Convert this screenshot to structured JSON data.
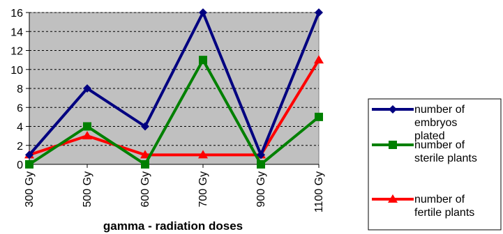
{
  "chart_data": {
    "type": "line",
    "categories": [
      "300 Gy",
      "500 Gy",
      "600 Gy",
      "700 Gy",
      "900 Gy",
      "1100 Gy"
    ],
    "series": [
      {
        "name": "number of embryos plated",
        "values": [
          1,
          8,
          4,
          16,
          1,
          16
        ],
        "color": "#000080",
        "marker": "diamond"
      },
      {
        "name": "number of sterile plants",
        "values": [
          0,
          4,
          0,
          11,
          0,
          5
        ],
        "color": "#008000",
        "marker": "square"
      },
      {
        "name": "number of fertile plants",
        "values": [
          1,
          3,
          1,
          1,
          1,
          11
        ],
        "color": "#ff0000",
        "marker": "triangle"
      }
    ],
    "xlabel": "gamma - radiation doses",
    "ylabel": "",
    "ylim": [
      0,
      16
    ],
    "yticks": [
      0,
      2,
      4,
      6,
      8,
      10,
      12,
      14,
      16
    ],
    "grid": "horizontal dashed",
    "legend_position": "right",
    "plot_background": "#c0c0c0"
  }
}
